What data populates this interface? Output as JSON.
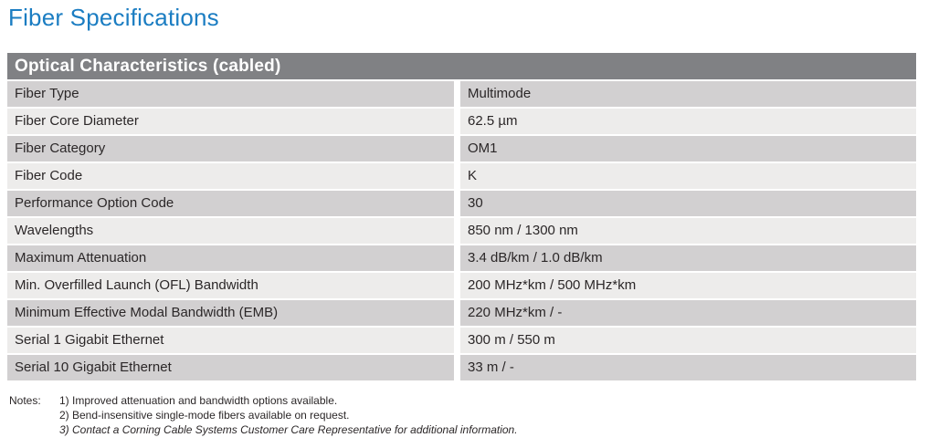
{
  "page": {
    "title": "Fiber Specifications"
  },
  "table": {
    "header": "Optical Characteristics (cabled)",
    "rows": [
      {
        "label": "Fiber Type",
        "value": "Multimode"
      },
      {
        "label": "Fiber Core Diameter",
        "value": "62.5 µm"
      },
      {
        "label": "Fiber Category",
        "value": "OM1"
      },
      {
        "label": "Fiber Code",
        "value": "K"
      },
      {
        "label": "Performance Option Code",
        "value": "30"
      },
      {
        "label": "Wavelengths",
        "value": "850 nm / 1300 nm"
      },
      {
        "label": "Maximum Attenuation",
        "value": "3.4 dB/km / 1.0 dB/km"
      },
      {
        "label": "Min. Overfilled Launch (OFL) Bandwidth",
        "value": "200 MHz*km / 500 MHz*km"
      },
      {
        "label": "Minimum Effective Modal Bandwidth (EMB)",
        "value": "220 MHz*km / -"
      },
      {
        "label": "Serial 1 Gigabit Ethernet",
        "value": "300 m / 550 m"
      },
      {
        "label": "Serial 10 Gigabit Ethernet",
        "value": "33 m / -"
      }
    ]
  },
  "notes": {
    "label": "Notes:",
    "items": [
      {
        "text": "1) Improved attenuation and bandwidth options available.",
        "italic": false
      },
      {
        "text": "2) Bend-insensitive single-mode fibers available on request.",
        "italic": false
      },
      {
        "text": "3) Contact a Corning Cable Systems Customer Care Representative for additional information.",
        "italic": true
      }
    ]
  },
  "colors": {
    "title_blue": "#1b7dc2",
    "header_bg": "#808184",
    "row_dark": "#d2d0d1",
    "row_light": "#edeceb",
    "text_color": "#2b2728"
  }
}
